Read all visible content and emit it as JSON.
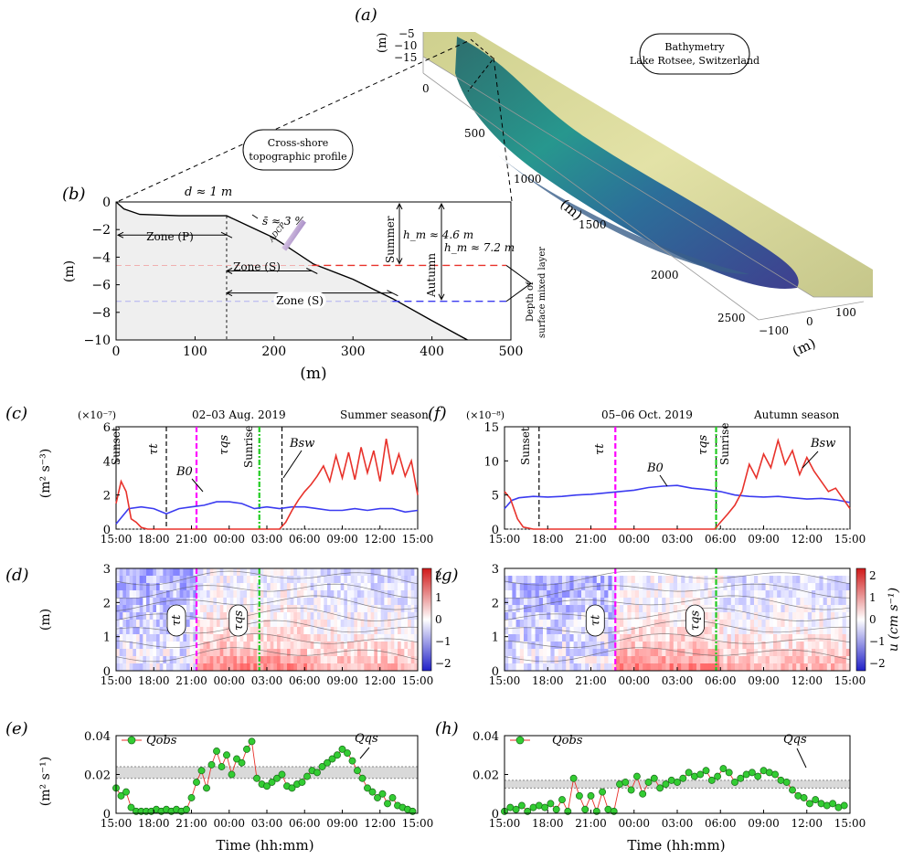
{
  "figure": {
    "panel_labels": [
      "(a)",
      "(b)",
      "(c)",
      "(d)",
      "(e)",
      "(f)",
      "(g)",
      "(h)"
    ],
    "colors": {
      "red": "#e8322b",
      "blue": "#3b3bf0",
      "magenta": "#ff00ff",
      "green": "#22cc22",
      "black": "#000000",
      "band": "#d9d9d9",
      "marker_fill": "#33cc33"
    }
  },
  "panel_a": {
    "callout": [
      "Bathymetry",
      "Lake Rotsee, Switzerland"
    ],
    "z_axis_label": "(m)",
    "z_ticks": [
      "−5",
      "−10",
      "−15"
    ],
    "x_axis_label": "(m)",
    "x_ticks": [
      "0",
      "500",
      "1000",
      "1500",
      "2000",
      "2500"
    ],
    "y_axis_label": "(m)",
    "y_ticks": [
      "−100",
      "0",
      "100"
    ]
  },
  "panel_b": {
    "callout": [
      "Cross-shore",
      "topographic profile"
    ],
    "d_label": "d ≈ 1 m",
    "slope_label": "s̄ ≈ 3 %",
    "adcp_label": "ADCP",
    "zone_p": "Zone (P)",
    "zone_s1": "Zone (S)",
    "zone_s2": "Zone (S)",
    "summer": "Summer",
    "autumn": "Autumn",
    "hm_summer": "h_m ≈ 4.6 m",
    "hm_autumn": "h_m ≈ 7.2 m",
    "depth_label": [
      "Depth of",
      "surface mixed layer"
    ],
    "xlabel": "(m)",
    "ylabel": "(m)",
    "x_ticks": [
      "0",
      "100",
      "200",
      "300",
      "400",
      "500"
    ],
    "y_ticks": [
      "0",
      "−2",
      "−4",
      "−6",
      "−8",
      "−10"
    ]
  },
  "time_ticks": [
    "15:00",
    "18:00",
    "21:00",
    "00:00",
    "03:00",
    "06:00",
    "09:00",
    "12:00",
    "15:00"
  ],
  "panel_c": {
    "scale": "(×10⁻⁷)",
    "date": "02–03 Aug. 2019",
    "season": "Summer season",
    "ylabel": "(m² s⁻³)",
    "y_ticks": [
      "0",
      "2",
      "4",
      "6"
    ],
    "sunset": "Sunset",
    "sunrise": "Sunrise",
    "tau_t": "τt",
    "tau_qs": "τqs",
    "b0": "B0",
    "bsw": "Bsw"
  },
  "panel_f": {
    "scale": "(×10⁻⁸)",
    "date": "05–06 Oct. 2019",
    "season": "Autumn season",
    "y_ticks": [
      "0",
      "5",
      "10",
      "15"
    ],
    "sunset": "Sunset",
    "sunrise": "Sunrise",
    "tau_t": "τt",
    "tau_qs": "τqs",
    "b0": "B0",
    "bsw": "Bsw"
  },
  "panel_d": {
    "ylabel": "(m)",
    "y_ticks": [
      "0",
      "1",
      "2",
      "3"
    ],
    "cbar_ticks": [
      "2",
      "1",
      "0",
      "−1",
      "−2"
    ],
    "tau_t": "τt",
    "tau_qs": "τqs"
  },
  "panel_g": {
    "y_ticks": [
      "0",
      "1",
      "2",
      "3"
    ],
    "cbar_ticks": [
      "2",
      "1",
      "0",
      "−1",
      "−2"
    ],
    "cbar_label": "u (cm s⁻¹)",
    "tau_t": "τt",
    "tau_qs": "τqs"
  },
  "panel_e": {
    "ylabel": "(m² s⁻¹)",
    "xlabel": "Time (hh:mm)",
    "y_ticks": [
      "0",
      "0.02",
      "0.04"
    ],
    "legend": "Qobs",
    "qs_label": "Qqs"
  },
  "panel_h": {
    "xlabel": "Time (hh:mm)",
    "y_ticks": [
      "0",
      "0.02",
      "0.04"
    ],
    "legend": "Qobs",
    "qs_label": "Qqs"
  },
  "chart_data": [
    {
      "panel": "b",
      "type": "line",
      "xlabel": "(m)",
      "ylabel": "(m)",
      "xlim": [
        0,
        500
      ],
      "ylim": [
        -10,
        0
      ],
      "series": [
        {
          "x": [
            0,
            10,
            30,
            80,
            140,
            200,
            250,
            300,
            350,
            400,
            445
          ],
          "y": [
            0,
            -0.5,
            -0.9,
            -1.0,
            -1.0,
            -2.6,
            -4.5,
            -5.6,
            -7.0,
            -8.6,
            -10
          ]
        }
      ],
      "ml_summer_depth": -4.6,
      "ml_autumn_depth": -7.2,
      "zone_boundary_x": 140
    },
    {
      "panel": "c",
      "type": "line",
      "x_unit": "hours from 15:00",
      "xlim": [
        0,
        24
      ],
      "ylim": [
        0,
        6
      ],
      "series": [
        {
          "name": "B0",
          "x": [
            0,
            1,
            2,
            3,
            4,
            5,
            6,
            7,
            8,
            9,
            10,
            11,
            12,
            13,
            14,
            15,
            16,
            17,
            18,
            19,
            20,
            21,
            22,
            23,
            24
          ],
          "y": [
            0.3,
            1.2,
            1.3,
            1.2,
            0.9,
            1.2,
            1.3,
            1.4,
            1.6,
            1.6,
            1.5,
            1.2,
            1.3,
            1.2,
            1.3,
            1.3,
            1.2,
            1.1,
            1.1,
            1.2,
            1.1,
            1.2,
            1.2,
            1.0,
            1.1
          ]
        },
        {
          "name": "Bsw",
          "x": [
            0,
            0.4,
            0.8,
            1.2,
            1.6,
            2.0,
            2.5,
            3,
            4,
            6,
            8,
            10,
            12,
            13,
            13.5,
            14,
            14.5,
            15,
            15.5,
            16,
            16.5,
            17,
            17.5,
            18,
            18.5,
            19,
            19.5,
            20,
            20.5,
            21,
            21.5,
            22,
            22.5,
            23,
            23.5,
            24
          ],
          "y": [
            1.5,
            2.8,
            2.2,
            0.6,
            0.4,
            0.1,
            0,
            0,
            0,
            0,
            0,
            0,
            0,
            0,
            0.4,
            1.1,
            1.7,
            2.2,
            2.6,
            3.1,
            3.7,
            2.8,
            4.3,
            3.0,
            4.5,
            2.9,
            4.8,
            3.3,
            4.6,
            2.8,
            5.3,
            3.2,
            4.4,
            3.1,
            4.0,
            2.0
          ]
        }
      ],
      "sunset": 4.0,
      "tau_t": 6.4,
      "tau_qs": 11.4,
      "sunrise": 13.2
    },
    {
      "panel": "f",
      "type": "line",
      "x_unit": "hours from 15:00",
      "xlim": [
        0,
        24
      ],
      "ylim": [
        0,
        15
      ],
      "series": [
        {
          "name": "B0",
          "x": [
            0,
            0.5,
            1,
            2,
            3,
            4,
            5,
            6,
            7,
            8,
            9,
            10,
            11,
            12,
            13,
            14,
            15,
            16,
            17,
            18,
            19,
            20,
            21,
            22,
            23,
            24
          ],
          "y": [
            3.0,
            4.2,
            4.6,
            4.8,
            4.7,
            4.8,
            5.0,
            5.1,
            5.3,
            5.5,
            5.7,
            6.1,
            6.3,
            6.4,
            6.0,
            5.8,
            5.5,
            5.0,
            4.8,
            4.7,
            4.8,
            4.6,
            4.4,
            4.5,
            4.3,
            3.9
          ]
        },
        {
          "name": "Bsw",
          "x": [
            0,
            0.4,
            0.9,
            1.3,
            2,
            4,
            8,
            12,
            14.6,
            15,
            15.5,
            16,
            16.5,
            17,
            17.5,
            18,
            18.5,
            19,
            19.5,
            20,
            20.5,
            21,
            21.5,
            22,
            22.5,
            23,
            23.5,
            24
          ],
          "y": [
            5.5,
            4.5,
            1.5,
            0.3,
            0,
            0,
            0,
            0,
            0,
            1.0,
            2.2,
            3.5,
            5.5,
            9.5,
            7.5,
            11.0,
            9.0,
            13.0,
            9.5,
            11.5,
            8.0,
            10.5,
            8.5,
            7.0,
            5.5,
            6.0,
            4.5,
            3.0
          ]
        }
      ],
      "sunset": 2.4,
      "tau_t": 7.7,
      "tau_qs": 14.7,
      "sunrise": 14.7
    },
    {
      "panel": "e",
      "type": "scatter",
      "name": "Qobs",
      "x_unit": "hours from 15:00",
      "xlim": [
        0,
        24
      ],
      "ylim": [
        0,
        0.04
      ],
      "qs_band": [
        0.018,
        0.024
      ],
      "x": [
        0,
        0.4,
        0.8,
        1.2,
        1.6,
        2.0,
        2.4,
        2.8,
        3.2,
        3.6,
        4.0,
        4.4,
        4.8,
        5.2,
        5.6,
        6.0,
        6.4,
        6.8,
        7.2,
        7.6,
        8.0,
        8.4,
        8.8,
        9.2,
        9.6,
        10.0,
        10.4,
        10.8,
        11.2,
        11.6,
        12.0,
        12.4,
        12.8,
        13.2,
        13.6,
        14.0,
        14.4,
        14.8,
        15.2,
        15.6,
        16.0,
        16.4,
        16.8,
        17.2,
        17.6,
        18.0,
        18.4,
        18.8,
        19.2,
        19.6,
        20.0,
        20.4,
        20.8,
        21.2,
        21.6,
        22.0,
        22.4,
        22.8,
        23.2,
        23.6
      ],
      "y": [
        0.013,
        0.009,
        0.011,
        0.003,
        0.001,
        0.001,
        0.001,
        0.001,
        0.002,
        0.001,
        0.002,
        0.001,
        0.002,
        0.001,
        0.002,
        0.008,
        0.016,
        0.022,
        0.013,
        0.025,
        0.032,
        0.024,
        0.03,
        0.02,
        0.028,
        0.026,
        0.033,
        0.037,
        0.018,
        0.015,
        0.014,
        0.016,
        0.018,
        0.02,
        0.014,
        0.013,
        0.015,
        0.016,
        0.019,
        0.022,
        0.021,
        0.024,
        0.026,
        0.028,
        0.03,
        0.033,
        0.031,
        0.027,
        0.022,
        0.018,
        0.013,
        0.011,
        0.008,
        0.01,
        0.005,
        0.008,
        0.004,
        0.003,
        0.002,
        0.001
      ]
    },
    {
      "panel": "h",
      "type": "scatter",
      "name": "Qobs",
      "x_unit": "hours from 15:00",
      "xlim": [
        0,
        24
      ],
      "ylim": [
        0,
        0.04
      ],
      "qs_band": [
        0.013,
        0.017
      ],
      "x": [
        0,
        0.4,
        0.8,
        1.2,
        1.6,
        2.0,
        2.4,
        2.8,
        3.2,
        3.6,
        4.0,
        4.4,
        4.8,
        5.2,
        5.6,
        6.0,
        6.4,
        6.8,
        7.2,
        7.6,
        8.0,
        8.4,
        8.8,
        9.2,
        9.6,
        10.0,
        10.4,
        10.8,
        11.2,
        11.6,
        12.0,
        12.4,
        12.8,
        13.2,
        13.6,
        14.0,
        14.4,
        14.8,
        15.2,
        15.6,
        16.0,
        16.4,
        16.8,
        17.2,
        17.6,
        18.0,
        18.4,
        18.8,
        19.2,
        19.6,
        20.0,
        20.4,
        20.8,
        21.2,
        21.6,
        22.0,
        22.4,
        22.8,
        23.2,
        23.6
      ],
      "y": [
        0.001,
        0.003,
        0.002,
        0.004,
        0.001,
        0.003,
        0.004,
        0.003,
        0.005,
        0.002,
        0.007,
        0.001,
        0.018,
        0.009,
        0.002,
        0.009,
        0.001,
        0.011,
        0.002,
        0.001,
        0.015,
        0.016,
        0.012,
        0.019,
        0.01,
        0.016,
        0.018,
        0.013,
        0.015,
        0.017,
        0.016,
        0.018,
        0.021,
        0.019,
        0.02,
        0.022,
        0.017,
        0.019,
        0.023,
        0.021,
        0.016,
        0.018,
        0.02,
        0.021,
        0.019,
        0.022,
        0.021,
        0.02,
        0.017,
        0.016,
        0.012,
        0.009,
        0.008,
        0.005,
        0.007,
        0.005,
        0.004,
        0.005,
        0.003,
        0.004
      ]
    }
  ]
}
